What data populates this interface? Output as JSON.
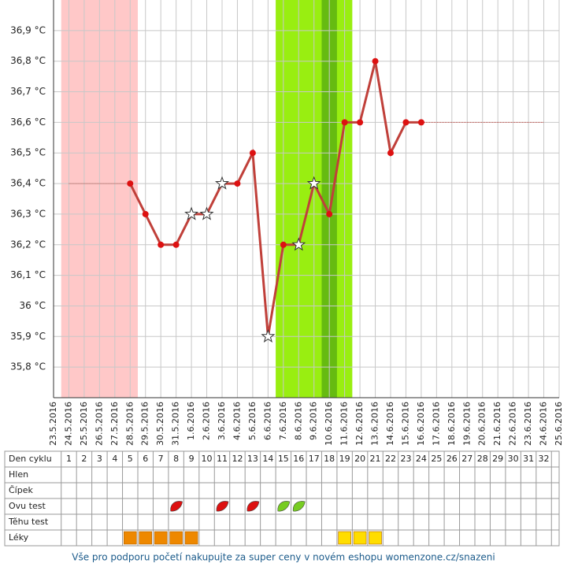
{
  "chart_data": {
    "type": "line",
    "categories": [
      "23.5.2016",
      "24.5.2016",
      "25.5.2016",
      "26.5.2016",
      "27.5.2016",
      "28.5.2016",
      "29.5.2016",
      "30.5.2016",
      "31.5.2016",
      "1.6.2016",
      "2.6.2016",
      "3.6.2016",
      "4.6.2016",
      "5.6.2016",
      "6.6.2016",
      "7.6.2016",
      "8.6.2016",
      "9.6.2016",
      "10.6.2016",
      "11.6.2016",
      "12.6.2016",
      "13.6.2016",
      "14.6.2016",
      "15.6.2016",
      "16.6.2016",
      "17.6.2016",
      "18.6.2016",
      "19.6.2016",
      "20.6.2016",
      "21.6.2016",
      "22.6.2016",
      "23.6.2016",
      "24.6.2016",
      "25.6.2016"
    ],
    "series": [
      {
        "color": "#c0403a",
        "marker_color": "#dd1111",
        "values": [
          null,
          null,
          null,
          null,
          null,
          36.4,
          36.3,
          36.2,
          36.2,
          36.3,
          36.3,
          36.4,
          36.4,
          36.5,
          35.9,
          36.2,
          36.2,
          36.4,
          36.3,
          36.6,
          36.6,
          36.8,
          36.5,
          36.6,
          36.6,
          null,
          null,
          null,
          null,
          null,
          null,
          null,
          null,
          null
        ],
        "markers": [
          null,
          null,
          null,
          null,
          null,
          "dot",
          "dot",
          "dot",
          "dot",
          "star",
          "star",
          "star",
          "dot",
          "dot",
          "star",
          "dot",
          "star",
          "star",
          "dot",
          "dot",
          "dot",
          "dot",
          "dot",
          "dot",
          "dot",
          null,
          null,
          null,
          null,
          null,
          null,
          null,
          null,
          null
        ]
      }
    ],
    "ylim": [
      35.7,
      37.0
    ],
    "yticks": [
      {
        "value": 35.8,
        "label": "35,8 °C"
      },
      {
        "value": 35.9,
        "label": "35,9 °C"
      },
      {
        "value": 36,
        "label": "36 °C"
      },
      {
        "value": 36.1,
        "label": "36,1 °C"
      },
      {
        "value": 36.2,
        "label": "36,2 °C"
      },
      {
        "value": 36.3,
        "label": "36,3 °C"
      },
      {
        "value": 36.4,
        "label": "36,4 °C"
      },
      {
        "value": 36.5,
        "label": "36,5 °C"
      },
      {
        "value": 36.6,
        "label": "36,6 °C"
      },
      {
        "value": 36.7,
        "label": "36,7 °C"
      },
      {
        "value": 36.8,
        "label": "36,8 °C"
      },
      {
        "value": 36.9,
        "label": "36,9 °C"
      }
    ],
    "grid": true,
    "reference_lines": [
      {
        "from": 1,
        "to": 5,
        "value": 36.4,
        "color": "#c0403a"
      },
      {
        "from": 24,
        "to": 32,
        "value": 36.6,
        "color": "#c0403a"
      }
    ],
    "bands": [
      {
        "from": 1,
        "to": 5,
        "color": "#ffc8c8"
      },
      {
        "from": 15,
        "to": 19,
        "color": "#99ee11"
      },
      {
        "from": 18,
        "to": 18,
        "color": "#66bb11"
      }
    ]
  },
  "table": {
    "row_labels": [
      "Den cyklu",
      "Hlen",
      "Čípek",
      "Ovu test",
      "Těhu test",
      "Léky"
    ],
    "days": [
      1,
      2,
      3,
      4,
      5,
      6,
      7,
      8,
      9,
      10,
      11,
      12,
      13,
      14,
      15,
      16,
      17,
      18,
      19,
      20,
      21,
      22,
      23,
      24,
      25,
      26,
      27,
      28,
      29,
      30,
      31,
      32
    ],
    "ovu_test": [
      {
        "day": 8,
        "color": "#dd1111"
      },
      {
        "day": 11,
        "color": "#dd1111"
      },
      {
        "day": 13,
        "color": "#dd1111"
      },
      {
        "day": 15,
        "color": "#77cc22"
      },
      {
        "day": 16,
        "color": "#77cc22"
      }
    ],
    "medication": [
      {
        "day": 5,
        "color": "#ee8800"
      },
      {
        "day": 6,
        "color": "#ee8800"
      },
      {
        "day": 7,
        "color": "#ee8800"
      },
      {
        "day": 8,
        "color": "#ee8800"
      },
      {
        "day": 9,
        "color": "#ee8800"
      },
      {
        "day": 19,
        "color": "#ffdd00"
      },
      {
        "day": 20,
        "color": "#ffdd00"
      },
      {
        "day": 21,
        "color": "#ffdd00"
      }
    ]
  },
  "footer": "Vše pro podporu početí nakupujte za super ceny v novém eshopu womenzone.cz/snazeni"
}
